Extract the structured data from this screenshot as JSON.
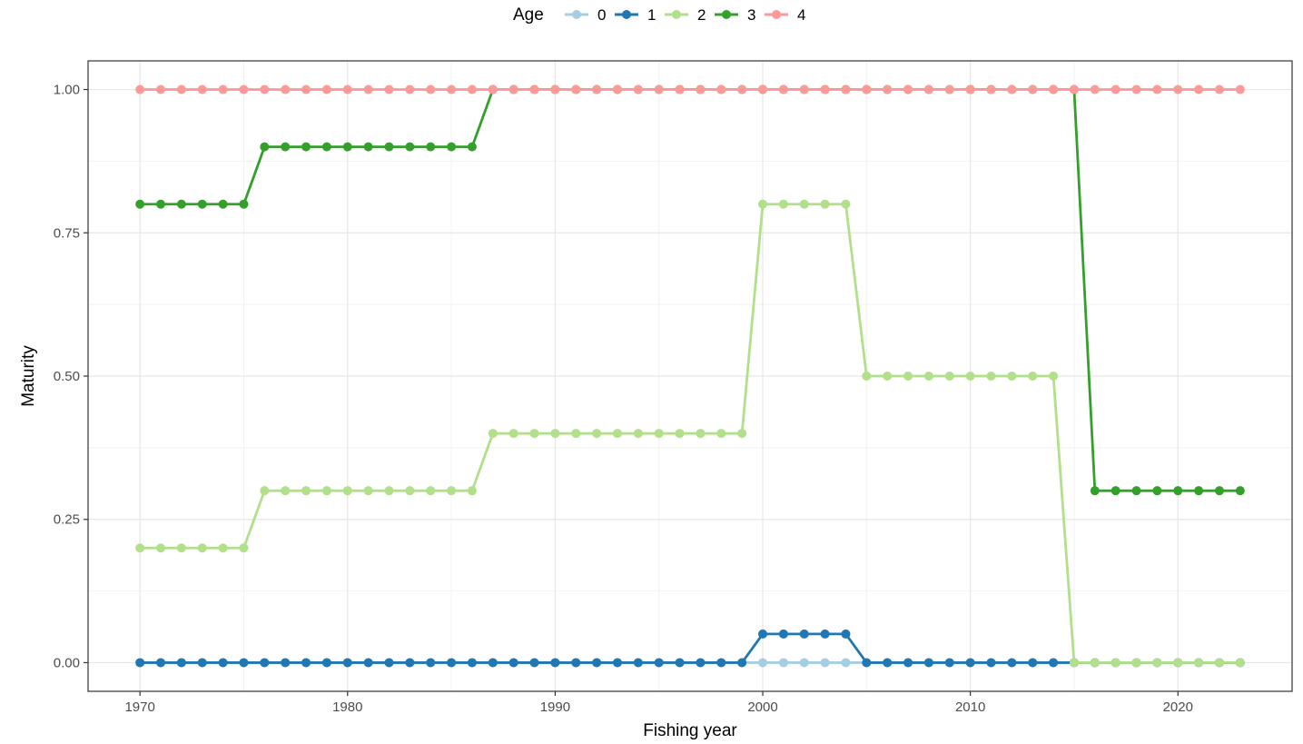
{
  "chart_data": {
    "type": "line",
    "xlabel": "Fishing year",
    "ylabel": "Maturity",
    "xlim": [
      1967.5,
      2025.5
    ],
    "ylim": [
      -0.05,
      1.05
    ],
    "x_ticks": [
      1970,
      1980,
      1990,
      2000,
      2010,
      2020
    ],
    "x_tick_labels": [
      "1970",
      "1980",
      "1990",
      "2000",
      "2010",
      "2020"
    ],
    "y_ticks": [
      0,
      0.25,
      0.5,
      0.75,
      1.0
    ],
    "y_tick_labels": [
      "0.00",
      "0.25",
      "0.50",
      "0.75",
      "1.00"
    ],
    "grid": true,
    "legend": {
      "title": "Age",
      "position": "top"
    },
    "x": [
      1970,
      1971,
      1972,
      1973,
      1974,
      1975,
      1976,
      1977,
      1978,
      1979,
      1980,
      1981,
      1982,
      1983,
      1984,
      1985,
      1986,
      1987,
      1988,
      1989,
      1990,
      1991,
      1992,
      1993,
      1994,
      1995,
      1996,
      1997,
      1998,
      1999,
      2000,
      2001,
      2002,
      2003,
      2004,
      2005,
      2006,
      2007,
      2008,
      2009,
      2010,
      2011,
      2012,
      2013,
      2014,
      2015,
      2016,
      2017,
      2018,
      2019,
      2020,
      2021,
      2022,
      2023
    ],
    "series": [
      {
        "name": "0",
        "color": "#a6cee3",
        "values": [
          0,
          0,
          0,
          0,
          0,
          0,
          0,
          0,
          0,
          0,
          0,
          0,
          0,
          0,
          0,
          0,
          0,
          0,
          0,
          0,
          0,
          0,
          0,
          0,
          0,
          0,
          0,
          0,
          0,
          0,
          0,
          0,
          0,
          0,
          0,
          0,
          0,
          0,
          0,
          0,
          0,
          0,
          0,
          0,
          0,
          0,
          0,
          0,
          0,
          0,
          0,
          0,
          0,
          0
        ]
      },
      {
        "name": "1",
        "color": "#1f78b4",
        "values": [
          0,
          0,
          0,
          0,
          0,
          0,
          0,
          0,
          0,
          0,
          0,
          0,
          0,
          0,
          0,
          0,
          0,
          0,
          0,
          0,
          0,
          0,
          0,
          0,
          0,
          0,
          0,
          0,
          0,
          0,
          0.05,
          0.05,
          0.05,
          0.05,
          0.05,
          0,
          0,
          0,
          0,
          0,
          0,
          0,
          0,
          0,
          0,
          0,
          0,
          0,
          0,
          0,
          0,
          0,
          0,
          0
        ]
      },
      {
        "name": "2",
        "color": "#b2df8a",
        "values": [
          0.2,
          0.2,
          0.2,
          0.2,
          0.2,
          0.2,
          0.3,
          0.3,
          0.3,
          0.3,
          0.3,
          0.3,
          0.3,
          0.3,
          0.3,
          0.3,
          0.3,
          0.4,
          0.4,
          0.4,
          0.4,
          0.4,
          0.4,
          0.4,
          0.4,
          0.4,
          0.4,
          0.4,
          0.4,
          0.4,
          0.8,
          0.8,
          0.8,
          0.8,
          0.8,
          0.5,
          0.5,
          0.5,
          0.5,
          0.5,
          0.5,
          0.5,
          0.5,
          0.5,
          0.5,
          0,
          0,
          0,
          0,
          0,
          0,
          0,
          0,
          0
        ]
      },
      {
        "name": "3",
        "color": "#33a02c",
        "values": [
          0.8,
          0.8,
          0.8,
          0.8,
          0.8,
          0.8,
          0.9,
          0.9,
          0.9,
          0.9,
          0.9,
          0.9,
          0.9,
          0.9,
          0.9,
          0.9,
          0.9,
          1,
          1,
          1,
          1,
          1,
          1,
          1,
          1,
          1,
          1,
          1,
          1,
          1,
          1,
          1,
          1,
          1,
          1,
          1,
          1,
          1,
          1,
          1,
          1,
          1,
          1,
          1,
          1,
          1,
          0.3,
          0.3,
          0.3,
          0.3,
          0.3,
          0.3,
          0.3,
          0.3
        ]
      },
      {
        "name": "4",
        "color": "#fb9a99",
        "values": [
          1,
          1,
          1,
          1,
          1,
          1,
          1,
          1,
          1,
          1,
          1,
          1,
          1,
          1,
          1,
          1,
          1,
          1,
          1,
          1,
          1,
          1,
          1,
          1,
          1,
          1,
          1,
          1,
          1,
          1,
          1,
          1,
          1,
          1,
          1,
          1,
          1,
          1,
          1,
          1,
          1,
          1,
          1,
          1,
          1,
          1,
          1,
          1,
          1,
          1,
          1,
          1,
          1,
          1
        ]
      }
    ]
  }
}
